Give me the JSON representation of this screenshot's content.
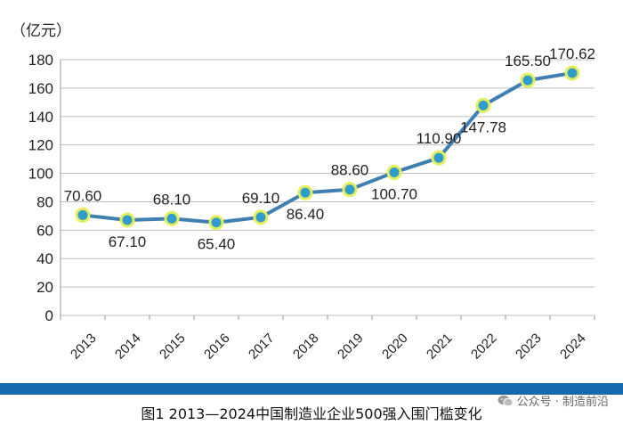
{
  "chart_data": {
    "type": "line",
    "ylabel": "（亿元）",
    "ylim": [
      0,
      180
    ],
    "yticks": [
      0,
      20,
      40,
      60,
      80,
      100,
      120,
      140,
      160,
      180
    ],
    "x": [
      "2013",
      "2014",
      "2015",
      "2016",
      "2017",
      "2018",
      "2019",
      "2020",
      "2021",
      "2022",
      "2023",
      "2024"
    ],
    "values": [
      70.6,
      67.1,
      68.1,
      65.4,
      69.1,
      86.4,
      88.6,
      100.7,
      110.9,
      147.78,
      165.5,
      170.62
    ],
    "data_labels": [
      "70.60",
      "67.10",
      "68.10",
      "65.40",
      "69.10",
      "86.40",
      "88.60",
      "100.70",
      "110.90",
      "147.78",
      "165.50",
      "170.62"
    ],
    "label_position": [
      "above",
      "below",
      "above",
      "below",
      "above",
      "below",
      "above",
      "below",
      "above",
      "below",
      "above",
      "above"
    ],
    "grid": "horizontal",
    "colors": {
      "line": "#3f7fb2",
      "marker_fill": "#2e9dcc",
      "marker_ring": "#e4ee5a",
      "grid": "#bfbfbf"
    }
  },
  "caption": "图1   2013—2024中国制造业企业500强入围门槛变化",
  "watermark": "公众号 · 制造前沿"
}
